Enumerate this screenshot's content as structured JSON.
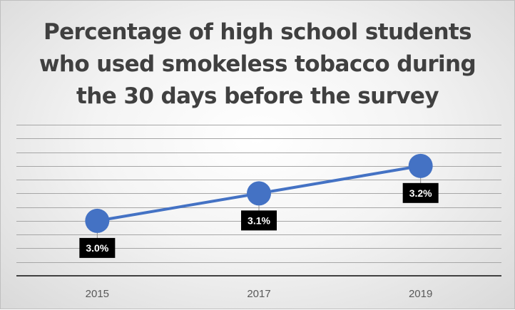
{
  "chart_data": {
    "type": "line",
    "title_lines": [
      "Percentage of high school students",
      "who used smokeless tobacco during",
      "the 30 days before the survey"
    ],
    "categories": [
      "2015",
      "2017",
      "2019"
    ],
    "series": [
      {
        "values": [
          3.0,
          3.1,
          3.2
        ],
        "labels": [
          "3.0%",
          "3.1%",
          "3.2%"
        ]
      }
    ],
    "xlabel": "",
    "ylabel": "",
    "ylim": [
      2.8,
      3.35
    ],
    "y_tick_labels_shown": false,
    "grid": true,
    "legend": "none",
    "colors": {
      "line": "#4472c4",
      "marker": "#4472c4",
      "label_bg": "#000000",
      "label_text": "#ffffff",
      "grid": "#a6a6a6",
      "axis": "#404040"
    }
  }
}
